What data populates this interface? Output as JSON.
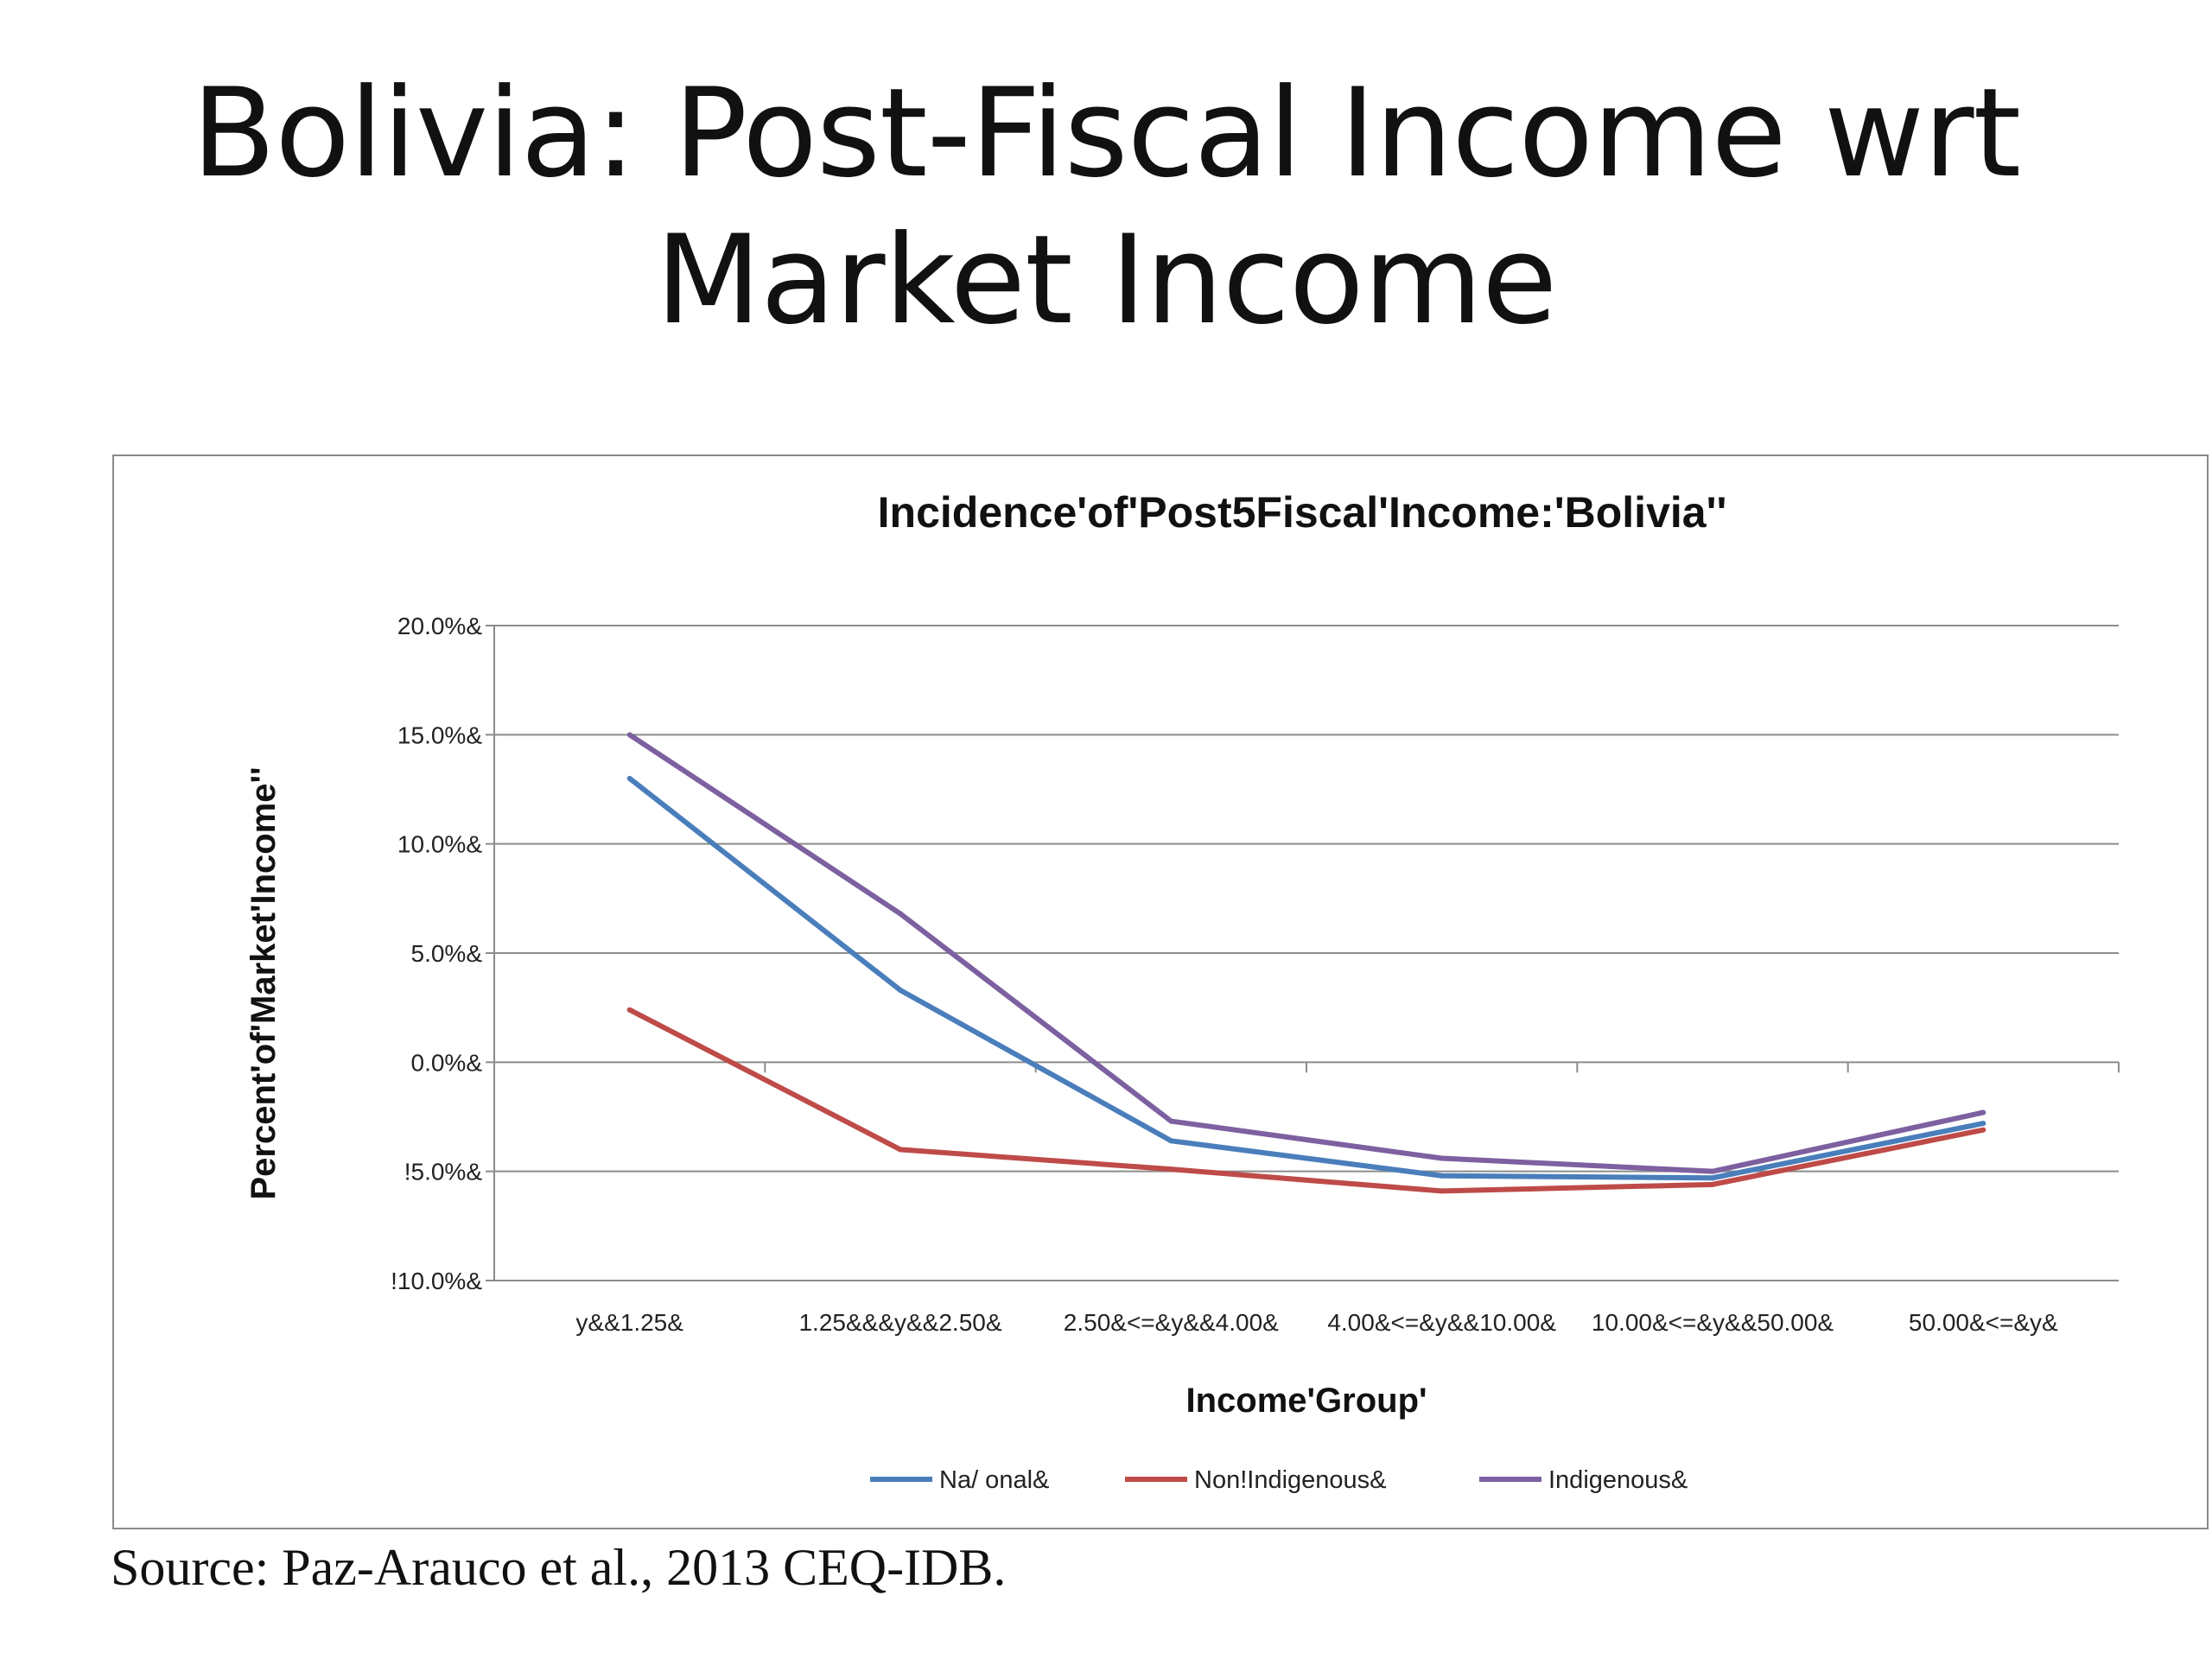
{
  "slide": {
    "title_line1": "Bolivia: Post-Fiscal Income wrt",
    "title_line2": "Market Income",
    "source": "Source: Paz-Arauco et al., 2013 CEQ-IDB."
  },
  "chart_data": {
    "type": "line",
    "title": "Incidence'of'Post5Fiscal'Income:'Bolivia''",
    "xlabel": "Income'Group'",
    "ylabel": "Percent'of'Market'Income''",
    "categories": [
      "y&&1.25&",
      "1.25&&&y&&2.50&",
      "2.50&<=&y&&4.00&",
      "4.00&<=&y&&10.00&",
      "10.00&<=&y&&50.00&",
      "50.00&<=&y&"
    ],
    "ylim": [
      -10,
      20
    ],
    "yticks": [
      20,
      15,
      10,
      5,
      0,
      -5,
      -10
    ],
    "ytick_labels": [
      "20.0%&",
      "15.0%&",
      "10.0%&",
      "5.0%&",
      "0.0%&",
      "!5.0%&",
      "!10.0%&"
    ],
    "grid": true,
    "legend_position": "bottom",
    "series": [
      {
        "name": "Na/ onal&",
        "color": "#4a7ebb",
        "values": [
          13.0,
          3.3,
          -3.6,
          -5.2,
          -5.3,
          -2.8
        ]
      },
      {
        "name": "Non!Indigenous&",
        "color": "#be4b48",
        "values": [
          2.4,
          -4.0,
          -4.9,
          -5.9,
          -5.6,
          -3.1
        ]
      },
      {
        "name": "Indigenous&",
        "color": "#7d60a0",
        "values": [
          15.0,
          6.8,
          -2.7,
          -4.4,
          -5.0,
          -2.3
        ]
      }
    ]
  }
}
